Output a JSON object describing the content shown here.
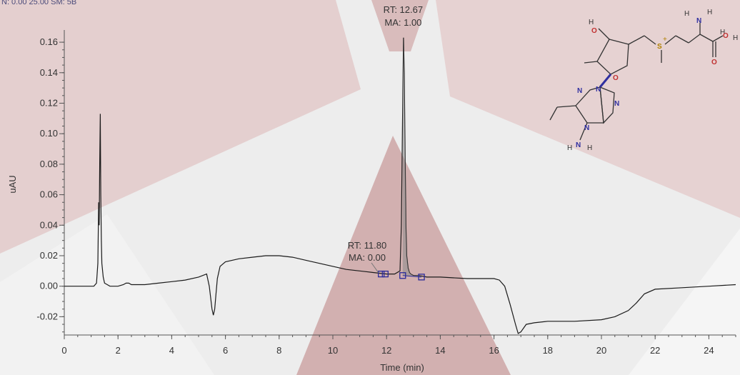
{
  "header_text": "N: 0.00   25.00   SM: 5B",
  "chart_data": {
    "type": "line",
    "xlabel": "Time (min)",
    "ylabel": "uAU",
    "xlim": [
      0,
      25
    ],
    "ylim": [
      -0.032,
      0.168
    ],
    "xticks": [
      0,
      2,
      4,
      6,
      8,
      10,
      12,
      14,
      16,
      18,
      20,
      22,
      24
    ],
    "xtick_labels": [
      "0",
      "2",
      "4",
      "6",
      "8",
      "10",
      "12",
      "14",
      "16",
      "18",
      "20",
      "22",
      "24"
    ],
    "yticks": [
      -0.02,
      0.0,
      0.02,
      0.04,
      0.06,
      0.08,
      0.1,
      0.12,
      0.14,
      0.16
    ],
    "ytick_labels": [
      "-0.02",
      "0.00",
      "0.02",
      "0.04",
      "0.06",
      "0.08",
      "0.10",
      "0.12",
      "0.14",
      "0.16"
    ],
    "grid": false,
    "series": [
      {
        "x": [
          0.0,
          1.1,
          1.2,
          1.25,
          1.28,
          1.3,
          1.32,
          1.34,
          1.36,
          1.38,
          1.4,
          1.45,
          1.5,
          1.6,
          1.7,
          1.8,
          2.0,
          2.2,
          2.3,
          2.4,
          2.5,
          2.6,
          3.0,
          3.5,
          4.0,
          4.5,
          5.0,
          5.3,
          5.4,
          5.5,
          5.55,
          5.6,
          5.65,
          5.7,
          5.8,
          6.0,
          6.5,
          7.0,
          7.5,
          8.0,
          8.5,
          9.0,
          9.5,
          10.0,
          10.5,
          11.0,
          11.5,
          12.0,
          12.3,
          12.5,
          12.55,
          12.6,
          12.63,
          12.66,
          12.69,
          12.72,
          12.75,
          12.8,
          12.85,
          12.9,
          13.0,
          13.2,
          13.5,
          14.0,
          15.0,
          16.0,
          16.2,
          16.4,
          16.6,
          16.8,
          16.9,
          17.0,
          17.2,
          17.5,
          18.0,
          19.0,
          20.0,
          20.5,
          21.0,
          21.3,
          21.6,
          22.0,
          23.0,
          24.0,
          25.0
        ],
        "y": [
          0.0,
          0.0,
          0.002,
          0.015,
          0.055,
          0.04,
          0.08,
          0.113,
          0.06,
          0.03,
          0.015,
          0.006,
          0.002,
          0.001,
          0.0,
          0.0,
          0.0,
          0.001,
          0.002,
          0.002,
          0.001,
          0.001,
          0.001,
          0.002,
          0.003,
          0.004,
          0.006,
          0.008,
          0.0,
          -0.015,
          -0.019,
          -0.015,
          -0.005,
          0.005,
          0.013,
          0.016,
          0.018,
          0.019,
          0.02,
          0.02,
          0.019,
          0.017,
          0.015,
          0.013,
          0.011,
          0.01,
          0.009,
          0.008,
          0.008,
          0.01,
          0.04,
          0.12,
          0.163,
          0.14,
          0.09,
          0.04,
          0.02,
          0.012,
          0.009,
          0.008,
          0.007,
          0.007,
          0.006,
          0.006,
          0.005,
          0.005,
          0.004,
          0.0,
          -0.012,
          -0.025,
          -0.031,
          -0.03,
          -0.025,
          -0.024,
          -0.023,
          -0.023,
          -0.022,
          -0.02,
          -0.016,
          -0.011,
          -0.005,
          -0.002,
          -0.001,
          0.0,
          0.001
        ]
      }
    ],
    "markers": [
      {
        "x": 11.8,
        "y": 0.008
      },
      {
        "x": 11.95,
        "y": 0.008
      },
      {
        "x": 12.6,
        "y": 0.007
      },
      {
        "x": 13.3,
        "y": 0.006
      }
    ],
    "annotations": [
      {
        "lines": [
          "RT: 12.67",
          "MA: 1.00"
        ],
        "x": 12.67,
        "y": 0.163
      },
      {
        "lines": [
          "RT: 11.80",
          "MA: 0.00"
        ],
        "x": 11.8,
        "y": 0.008
      }
    ]
  },
  "molecule": {
    "labels": [
      "H",
      "H",
      "N",
      "H",
      "O",
      "H",
      "H",
      "O",
      "O",
      "O",
      "S",
      "+",
      "N",
      "N",
      "N",
      "N",
      "N",
      "H",
      "H"
    ]
  },
  "colors": {
    "line": "#1a1a1a",
    "marker": "#2a2a9a",
    "wedge": "#c9a0a0",
    "gray": "#cfcfcf",
    "axis": "#555555"
  }
}
